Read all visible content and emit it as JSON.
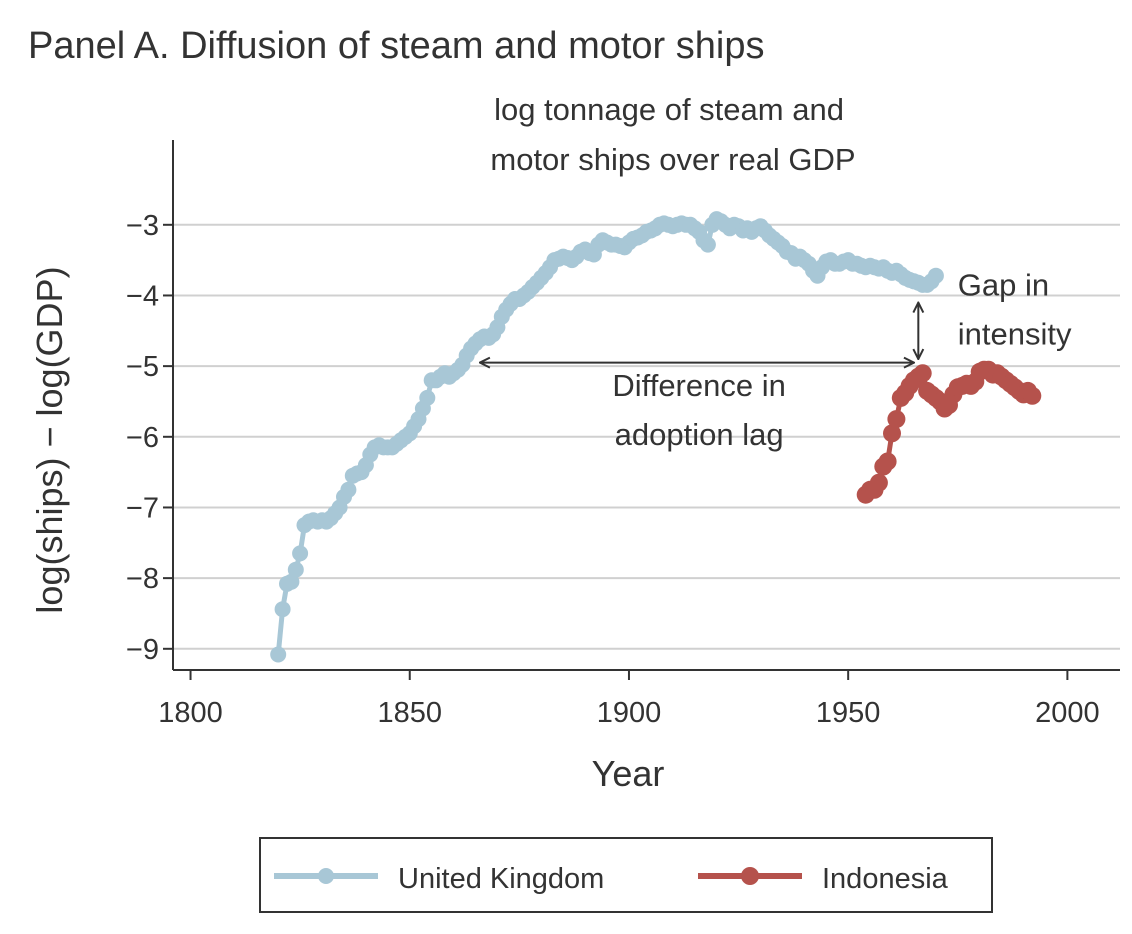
{
  "chart_data": {
    "type": "line",
    "title": "Panel A. Diffusion of steam and motor ships",
    "subtitle_lines": [
      "log tonnage of steam and",
      "motor ships over real GDP"
    ],
    "xlabel": "Year",
    "ylabel": "log(ships)  −  log(GDP)",
    "xlim": [
      1796,
      2012
    ],
    "ylim": [
      -9.3,
      -1.8
    ],
    "xticks": [
      1800,
      1850,
      1900,
      1950,
      2000
    ],
    "yticks": [
      -9,
      -8,
      -7,
      -6,
      -5,
      -4,
      -3
    ],
    "ytick_labels": [
      "−9",
      "−8",
      "−7",
      "−6",
      "−5",
      "−4",
      "−3"
    ],
    "grid": "horizontal",
    "legend_position": "bottom",
    "series": [
      {
        "name": "United Kingdom",
        "color": "#a8c7d6",
        "x": [
          1820,
          1821,
          1822,
          1823,
          1824,
          1825,
          1826,
          1827,
          1828,
          1829,
          1830,
          1831,
          1832,
          1833,
          1834,
          1835,
          1836,
          1837,
          1838,
          1839,
          1840,
          1841,
          1842,
          1843,
          1844,
          1845,
          1846,
          1847,
          1848,
          1849,
          1850,
          1851,
          1852,
          1853,
          1854,
          1855,
          1856,
          1857,
          1858,
          1859,
          1860,
          1861,
          1862,
          1863,
          1864,
          1865,
          1866,
          1867,
          1868,
          1869,
          1870,
          1871,
          1872,
          1873,
          1874,
          1875,
          1876,
          1877,
          1878,
          1879,
          1880,
          1881,
          1882,
          1883,
          1884,
          1885,
          1886,
          1887,
          1888,
          1889,
          1890,
          1891,
          1892,
          1893,
          1894,
          1895,
          1896,
          1897,
          1898,
          1899,
          1900,
          1901,
          1902,
          1903,
          1904,
          1905,
          1906,
          1907,
          1908,
          1909,
          1910,
          1911,
          1912,
          1913,
          1914,
          1915,
          1916,
          1917,
          1918,
          1919,
          1920,
          1921,
          1922,
          1923,
          1924,
          1925,
          1926,
          1927,
          1928,
          1929,
          1930,
          1931,
          1932,
          1933,
          1934,
          1935,
          1936,
          1937,
          1938,
          1939,
          1940,
          1941,
          1942,
          1943,
          1944,
          1945,
          1946,
          1947,
          1948,
          1949,
          1950,
          1951,
          1952,
          1953,
          1954,
          1955,
          1956,
          1957,
          1958,
          1959,
          1960,
          1961,
          1962,
          1963,
          1964,
          1965,
          1966,
          1967,
          1968,
          1969,
          1970
        ],
        "values": [
          -9.08,
          -8.44,
          -8.08,
          -8.05,
          -7.88,
          -7.65,
          -7.25,
          -7.2,
          -7.18,
          -7.2,
          -7.18,
          -7.2,
          -7.15,
          -7.08,
          -7.0,
          -6.85,
          -6.75,
          -6.55,
          -6.52,
          -6.5,
          -6.4,
          -6.25,
          -6.15,
          -6.12,
          -6.15,
          -6.15,
          -6.15,
          -6.1,
          -6.05,
          -6.0,
          -5.95,
          -5.85,
          -5.75,
          -5.6,
          -5.45,
          -5.2,
          -5.2,
          -5.15,
          -5.1,
          -5.15,
          -5.1,
          -5.05,
          -4.98,
          -4.85,
          -4.75,
          -4.68,
          -4.62,
          -4.58,
          -4.6,
          -4.55,
          -4.45,
          -4.3,
          -4.2,
          -4.12,
          -4.05,
          -4.05,
          -4.0,
          -3.95,
          -3.88,
          -3.82,
          -3.75,
          -3.68,
          -3.6,
          -3.5,
          -3.48,
          -3.45,
          -3.47,
          -3.5,
          -3.45,
          -3.38,
          -3.35,
          -3.4,
          -3.42,
          -3.28,
          -3.22,
          -3.25,
          -3.28,
          -3.28,
          -3.3,
          -3.32,
          -3.25,
          -3.2,
          -3.18,
          -3.15,
          -3.1,
          -3.08,
          -3.05,
          -3.0,
          -2.98,
          -3.0,
          -3.02,
          -3.0,
          -2.98,
          -3.0,
          -3.0,
          -3.05,
          -3.1,
          -3.22,
          -3.28,
          -3.0,
          -2.92,
          -2.95,
          -3.0,
          -3.05,
          -3.0,
          -3.02,
          -3.08,
          -3.05,
          -3.1,
          -3.05,
          -3.02,
          -3.08,
          -3.15,
          -3.2,
          -3.25,
          -3.3,
          -3.38,
          -3.4,
          -3.48,
          -3.45,
          -3.5,
          -3.55,
          -3.65,
          -3.72,
          -3.6,
          -3.52,
          -3.5,
          -3.55,
          -3.55,
          -3.52,
          -3.5,
          -3.55,
          -3.55,
          -3.58,
          -3.6,
          -3.58,
          -3.6,
          -3.62,
          -3.6,
          -3.65,
          -3.68,
          -3.65,
          -3.7,
          -3.75,
          -3.78,
          -3.8,
          -3.82,
          -3.85,
          -3.85,
          -3.8,
          -3.72
        ]
      },
      {
        "name": "Indonesia",
        "color": "#b5524c",
        "x": [
          1954,
          1955,
          1956,
          1957,
          1958,
          1959,
          1960,
          1961,
          1962,
          1963,
          1964,
          1965,
          1966,
          1967,
          1968,
          1969,
          1970,
          1971,
          1972,
          1973,
          1974,
          1975,
          1976,
          1977,
          1978,
          1979,
          1980,
          1981,
          1982,
          1983,
          1984,
          1985,
          1986,
          1987,
          1988,
          1989,
          1990,
          1991,
          1992
        ],
        "values": [
          -6.82,
          -6.75,
          -6.75,
          -6.65,
          -6.42,
          -6.35,
          -5.95,
          -5.75,
          -5.45,
          -5.38,
          -5.28,
          -5.2,
          -5.15,
          -5.1,
          -5.35,
          -5.4,
          -5.45,
          -5.5,
          -5.6,
          -5.55,
          -5.4,
          -5.3,
          -5.28,
          -5.25,
          -5.28,
          -5.22,
          -5.08,
          -5.05,
          -5.05,
          -5.12,
          -5.1,
          -5.15,
          -5.2,
          -5.25,
          -5.3,
          -5.35,
          -5.4,
          -5.35,
          -5.42
        ]
      }
    ],
    "annotations": {
      "lag_label_lines": [
        "Difference in",
        "adoption lag"
      ],
      "gap_label_lines": [
        "Gap in",
        "intensity"
      ],
      "lag_arrow": {
        "x1": 1866,
        "x2": 1965,
        "y": -4.95
      },
      "gap_arrow": {
        "x": 1966,
        "y1": -4.1,
        "y2": -4.9
      },
      "lag_label_anchor": {
        "x": 1916,
        "y": -5.42
      },
      "gap_label_anchor": {
        "x": 1975,
        "y": -4.0
      }
    }
  }
}
